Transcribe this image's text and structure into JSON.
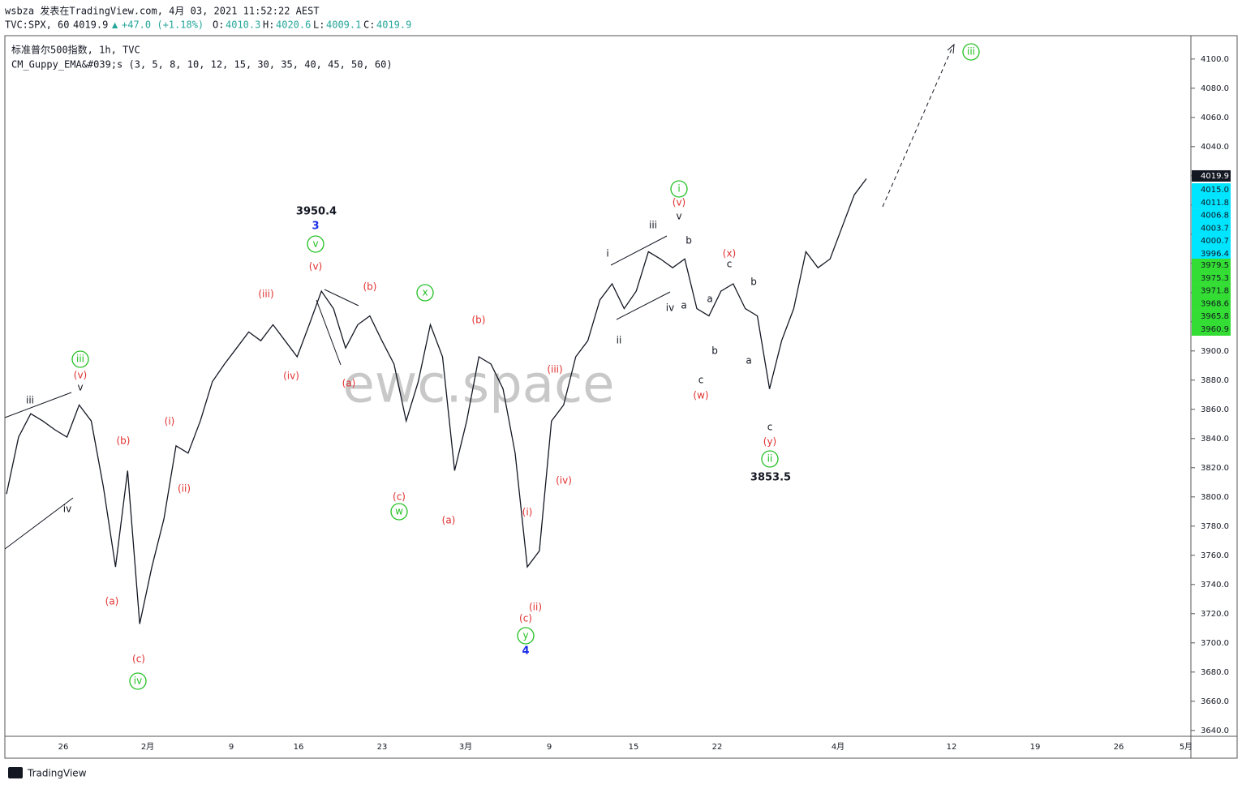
{
  "header": {
    "line1": "wsbza 发表在TradingView.com, 4月 03, 2021 11:52:22 AEST",
    "symbol": "TVC:SPX, 60",
    "last": "4019.9",
    "arrow": "▲",
    "change": "+47.0 (+1.18%)",
    "ohlc": [
      {
        "label": "O:",
        "value": "4010.3"
      },
      {
        "label": "H:",
        "value": "4020.6"
      },
      {
        "label": "L:",
        "value": "4009.1"
      },
      {
        "label": "C:",
        "value": "4019.9"
      }
    ]
  },
  "legend": {
    "instrument": "标准普尔500指数, 1h, TVC",
    "indicator": "CM_Guppy_EMA&#039;s (3, 5, 8, 10, 12, 15, 30, 35, 40, 45, 50, 60)"
  },
  "watermark": "ewc.space",
  "footer": "TradingView",
  "chart_data": {
    "type": "line",
    "series": [
      {
        "name": "SPX",
        "color": "#131722",
        "values": [
          3802,
          3841,
          3857,
          3852,
          3846,
          3841,
          3863,
          3852,
          3807,
          3752,
          3818,
          3713,
          3752,
          3785,
          3835,
          3830,
          3852,
          3879,
          3891,
          3902,
          3913,
          3907,
          3918,
          3907,
          3896,
          3918,
          3941,
          3929,
          3902,
          3918,
          3924,
          3907,
          3891,
          3852,
          3879,
          3918,
          3896,
          3818,
          3852,
          3896,
          3891,
          3874,
          3830,
          3752,
          3763,
          3852,
          3863,
          3896,
          3907,
          3935,
          3946,
          3929,
          3941,
          3968,
          3963,
          3957,
          3963,
          3929,
          3924,
          3941,
          3946,
          3929,
          3924,
          3874,
          3907,
          3929,
          3968,
          3957,
          3963,
          3985,
          4007,
          4018
        ]
      }
    ],
    "x_labels": [
      "26",
      "2月",
      "9",
      "16",
      "23",
      "3月",
      "9",
      "15",
      "22",
      "4月",
      "12",
      "19",
      "26",
      "5月"
    ],
    "ylim": [
      3636,
      4116
    ],
    "yticks": [
      {
        "value": 3640,
        "label": "3640.0"
      },
      {
        "value": 3660,
        "label": "3660.0"
      },
      {
        "value": 3680,
        "label": "3680.0"
      },
      {
        "value": 3700,
        "label": "3700.0"
      },
      {
        "value": 3720,
        "label": "3720.0"
      },
      {
        "value": 3740,
        "label": "3740.0"
      },
      {
        "value": 3760,
        "label": "3760.0"
      },
      {
        "value": 3780,
        "label": "3780.0"
      },
      {
        "value": 3800,
        "label": "3800.0"
      },
      {
        "value": 3820,
        "label": "3820.0"
      },
      {
        "value": 3840,
        "label": "3840.0"
      },
      {
        "value": 3860,
        "label": "3860.0"
      },
      {
        "value": 3880,
        "label": "3880.0"
      },
      {
        "value": 3900,
        "label": "3900.0"
      },
      {
        "value": 3920,
        "label": "3920.0"
      },
      {
        "value": 3940,
        "label": "3940.0"
      },
      {
        "value": 3960,
        "label": "3960.0"
      },
      {
        "value": 3980,
        "label": "3980.0"
      },
      {
        "value": 4000,
        "label": "4000.0"
      },
      {
        "value": 4020,
        "label": "4020.0"
      },
      {
        "value": 4040,
        "label": "4040.0"
      },
      {
        "value": 4060,
        "label": "4060.0"
      },
      {
        "value": 4080,
        "label": "4080.0"
      },
      {
        "value": 4100,
        "label": "4100.0"
      }
    ],
    "price_labels": {
      "close": {
        "value": 4019.9,
        "color": "#131722"
      },
      "fast": {
        "color": "#00e5ff",
        "values": [
          4015.0,
          4011.8,
          4006.8,
          4003.7,
          4000.7,
          3996.4
        ],
        "value_labels": [
          "4015.0",
          "4011.8",
          "4006.8",
          "4003.7",
          "4000.7",
          "3996.4"
        ]
      },
      "slow": {
        "color": "#33dd33",
        "values": [
          3979.5,
          3975.3,
          3971.8,
          3968.6,
          3965.8,
          3960.9
        ]
      }
    },
    "annotations": [
      {
        "text": "iii",
        "color": "#131722"
      },
      {
        "text": "v",
        "color": "#131722"
      },
      {
        "text": "iv",
        "color": "#131722"
      },
      {
        "text": "iii",
        "color": "#22c022",
        "circled": true
      },
      {
        "text": "(v)",
        "color": "#e03030"
      },
      {
        "text": "(b)",
        "color": "#e03030"
      },
      {
        "text": "(a)",
        "color": "#e03030"
      },
      {
        "text": "(c)",
        "color": "#e03030"
      },
      {
        "text": "iv",
        "color": "#22c022",
        "circled": true
      },
      {
        "text": "(i)",
        "color": "#e03030"
      },
      {
        "text": "(ii)",
        "color": "#e03030"
      },
      {
        "text": "(iii)",
        "color": "#e03030"
      },
      {
        "text": "(iv)",
        "color": "#e03030"
      },
      {
        "text": "3950.4",
        "color": "#131722"
      },
      {
        "text": "3",
        "color": "#1a2ee8"
      },
      {
        "text": "v",
        "color": "#22c022",
        "circled": true
      },
      {
        "text": "(v)",
        "color": "#e03030"
      },
      {
        "text": "(b)",
        "color": "#e03030"
      },
      {
        "text": "(a)",
        "color": "#e03030"
      },
      {
        "text": "x",
        "color": "#22c022",
        "circled": true
      },
      {
        "text": "(c)",
        "color": "#e03030"
      },
      {
        "text": "w",
        "color": "#22c022",
        "circled": true
      },
      {
        "text": "(b)",
        "color": "#e03030"
      },
      {
        "text": "(a)",
        "color": "#e03030"
      },
      {
        "text": "(iii)",
        "color": "#e03030"
      },
      {
        "text": "(iv)",
        "color": "#e03030"
      },
      {
        "text": "(i)",
        "color": "#e03030"
      },
      {
        "text": "(ii)",
        "color": "#e03030"
      },
      {
        "text": "(c)",
        "color": "#e03030"
      },
      {
        "text": "y",
        "color": "#22c022",
        "circled": true
      },
      {
        "text": "4",
        "color": "#1a2ee8"
      },
      {
        "text": "i",
        "color": "#131722"
      },
      {
        "text": "iii",
        "color": "#131722"
      },
      {
        "text": "ii",
        "color": "#131722"
      },
      {
        "text": "iv",
        "color": "#131722"
      },
      {
        "text": "v",
        "color": "#131722"
      },
      {
        "text": "(v)",
        "color": "#e03030"
      },
      {
        "text": "i",
        "color": "#22c022",
        "circled": true
      },
      {
        "text": "b",
        "color": "#131722"
      },
      {
        "text": "a",
        "color": "#131722"
      },
      {
        "text": "c",
        "color": "#131722"
      },
      {
        "text": "(w)",
        "color": "#e03030"
      },
      {
        "text": "b",
        "color": "#131722"
      },
      {
        "text": "a",
        "color": "#131722"
      },
      {
        "text": "c",
        "color": "#131722"
      },
      {
        "text": "(x)",
        "color": "#e03030"
      },
      {
        "text": "b",
        "color": "#131722"
      },
      {
        "text": "a",
        "color": "#131722"
      },
      {
        "text": "c",
        "color": "#131722"
      },
      {
        "text": "(y)",
        "color": "#e03030"
      },
      {
        "text": "ii",
        "color": "#22c022",
        "circled": true
      },
      {
        "text": "3853.5",
        "color": "#131722"
      },
      {
        "text": "iii",
        "color": "#22c022",
        "circled": true
      }
    ]
  }
}
